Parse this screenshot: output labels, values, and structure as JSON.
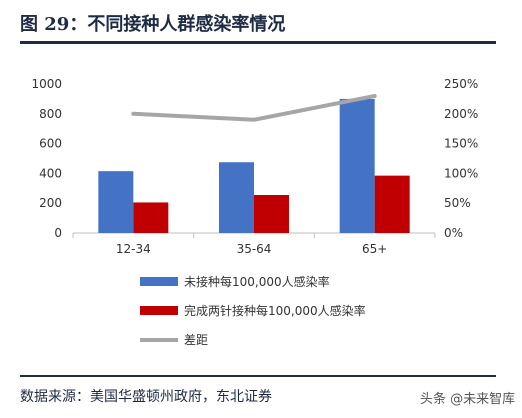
{
  "title": "图 29：不同接种人群感染率情况",
  "source": "数据来源：美国华盛顿州政府，东北证券",
  "watermark": "头条 @未来智库",
  "colors": {
    "unvaccinated": "#4472c4",
    "vaccinated": "#c00000",
    "gap": "#a6a6a6",
    "frame": "#1f2a44"
  },
  "chart_data": {
    "type": "bar",
    "categories": [
      "12-34",
      "35-64",
      "65+"
    ],
    "series": [
      {
        "name": "未接种每100,000人感染率",
        "kind": "bar",
        "axis": "left",
        "values": [
          415,
          475,
          900
        ]
      },
      {
        "name": "完成两针接种每100,000人感染率",
        "kind": "bar",
        "axis": "left",
        "values": [
          205,
          255,
          385
        ]
      },
      {
        "name": "差距",
        "kind": "line",
        "axis": "right",
        "values": [
          2.0,
          1.9,
          2.3
        ]
      }
    ],
    "ylim": [
      0,
      1000
    ],
    "y_ticks": [
      "0",
      "200",
      "400",
      "600",
      "800",
      "1000"
    ],
    "y2lim": [
      0,
      2.5
    ],
    "y2_ticks": [
      "0%",
      "50%",
      "100%",
      "150%",
      "200%",
      "250%"
    ],
    "grid": false,
    "legend_position": "bottom"
  }
}
